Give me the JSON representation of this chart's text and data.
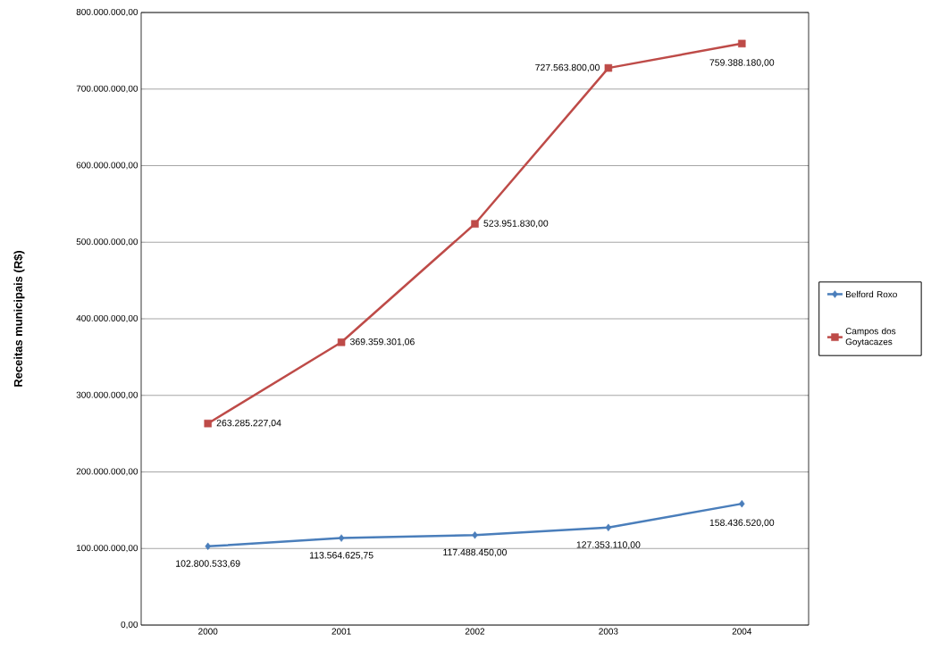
{
  "chart_data": {
    "type": "line",
    "ylabel": "Receitas municipais (R$)",
    "categories": [
      "2000",
      "2001",
      "2002",
      "2003",
      "2004"
    ],
    "series": [
      {
        "name": "Belford Roxo",
        "color": "#4a7ebb",
        "marker": "diamond",
        "values": [
          102800533.69,
          113564625.75,
          117488450.0,
          127353110.0,
          158436520.0
        ],
        "value_labels": [
          "102.800.533,69",
          "113.564.625,75",
          "117.488.450,00",
          "127.353.110,00",
          "158.436.520,00"
        ]
      },
      {
        "name": "Campos dos Goytacazes",
        "color": "#be4b48",
        "marker": "square",
        "values": [
          263285227.04,
          369359301.06,
          523951830.0,
          727563800.0,
          759388180.0
        ],
        "value_labels": [
          "263.285.227,04",
          "369.359.301,06",
          "523.951.830,00",
          "727.563.800,00",
          "759.388.180,00"
        ]
      }
    ],
    "ylim": [
      0,
      800000000
    ],
    "yticks": [
      {
        "value": 0,
        "label": "0,00"
      },
      {
        "value": 100000000,
        "label": "100.000.000,00"
      },
      {
        "value": 200000000,
        "label": "200.000.000,00"
      },
      {
        "value": 300000000,
        "label": "300.000.000,00"
      },
      {
        "value": 400000000,
        "label": "400.000.000,00"
      },
      {
        "value": 500000000,
        "label": "500.000.000,00"
      },
      {
        "value": 600000000,
        "label": "600.000.000,00"
      },
      {
        "value": 700000000,
        "label": "700.000.000,00"
      },
      {
        "value": 800000000,
        "label": "800.000.000,00"
      }
    ],
    "grid": "y",
    "legend": "right",
    "line_style": "solid"
  }
}
